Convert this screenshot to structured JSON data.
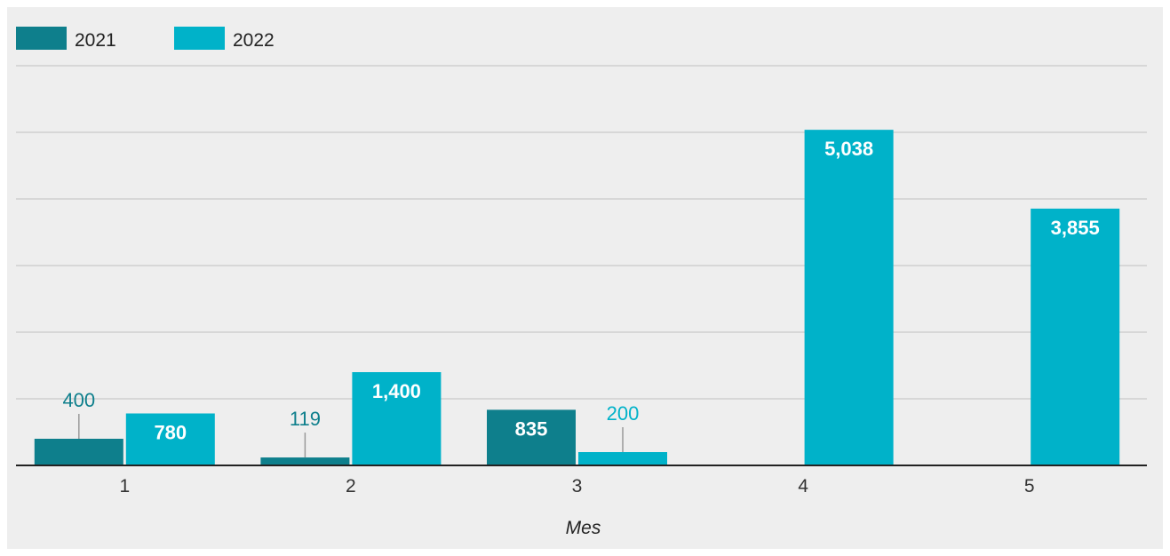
{
  "chart_data": {
    "type": "bar",
    "categories": [
      "1",
      "2",
      "3",
      "4",
      "5"
    ],
    "series": [
      {
        "name": "2021",
        "color": "#0e7f8c",
        "values": [
          400,
          119,
          835,
          null,
          null
        ],
        "labels": [
          "400",
          "119",
          "835",
          "",
          ""
        ]
      },
      {
        "name": "2022",
        "color": "#00b2c9",
        "values": [
          780,
          1400,
          200,
          5038,
          3855
        ],
        "labels": [
          "780",
          "1,400",
          "200",
          "5,038",
          "3,855"
        ]
      }
    ],
    "xlabel": "Mes",
    "ylabel": "",
    "ylim": [
      0,
      6000
    ],
    "grid": true,
    "legend_position": "top-left"
  }
}
